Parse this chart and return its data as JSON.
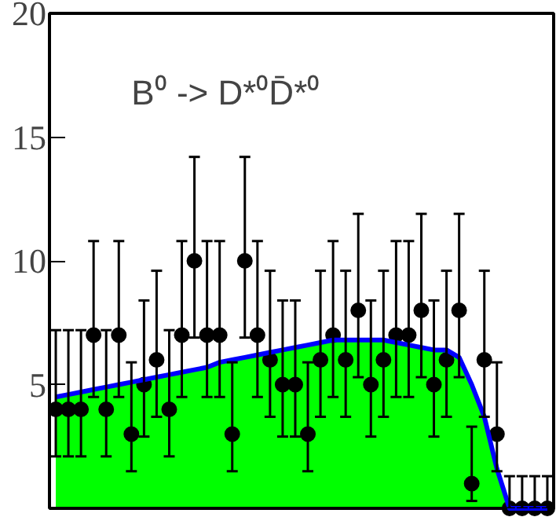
{
  "chart_data": {
    "type": "scatter",
    "categories": [
      null,
      null,
      null,
      null,
      null,
      null,
      null,
      null,
      null,
      null,
      null,
      null,
      null,
      null,
      null,
      null,
      null,
      null,
      null,
      null,
      null,
      null,
      null,
      null,
      null,
      null,
      null,
      null,
      null,
      null,
      null,
      null,
      null,
      null,
      null,
      null,
      null,
      null,
      null,
      null
    ],
    "ylim": [
      0,
      20
    ],
    "yticks": [
      5,
      10,
      15,
      20
    ],
    "tick_labels": "y",
    "annotations": [
      "B⁰ -> D*⁰D̄*⁰"
    ],
    "series": [
      {
        "type": "area",
        "color": "#00ff00",
        "values": [
          4.5,
          4.6,
          4.7,
          4.8,
          4.9,
          5.0,
          5.1,
          5.2,
          5.3,
          5.4,
          5.5,
          5.6,
          5.7,
          5.9,
          6.0,
          6.1,
          6.2,
          6.3,
          6.4,
          6.5,
          6.6,
          6.7,
          6.8,
          6.8,
          6.8,
          6.8,
          6.8,
          6.7,
          6.6,
          6.5,
          6.4,
          6.4,
          6.1,
          5.0,
          3.7,
          1.6,
          0,
          null,
          null,
          null
        ]
      },
      {
        "type": "line",
        "color": "#0000ff",
        "values": [
          4.5,
          4.6,
          4.7,
          4.8,
          4.9,
          5.0,
          5.1,
          5.2,
          5.3,
          5.4,
          5.5,
          5.6,
          5.7,
          5.9,
          6.0,
          6.1,
          6.2,
          6.3,
          6.4,
          6.5,
          6.6,
          6.7,
          6.8,
          6.8,
          6.8,
          6.8,
          6.8,
          6.7,
          6.6,
          6.5,
          6.4,
          6.4,
          6.1,
          5.0,
          3.7,
          1.6,
          0,
          0,
          0,
          0
        ]
      },
      {
        "color": "#000000",
        "marker": "circle",
        "values": [
          4,
          4,
          4,
          7,
          4,
          7,
          3,
          5,
          6,
          4,
          7,
          10,
          7,
          7,
          3,
          10,
          7,
          6,
          5,
          5,
          3,
          6,
          7,
          6,
          8,
          5,
          6,
          7,
          7,
          8,
          5,
          6,
          8,
          1,
          6,
          3,
          0,
          0,
          0,
          0
        ],
        "errors": [
          [
            2.1,
            7.2
          ],
          [
            2.1,
            7.2
          ],
          [
            2.1,
            7.2
          ],
          [
            4.5,
            10.8
          ],
          [
            2.1,
            7.2
          ],
          [
            4.5,
            10.8
          ],
          [
            1.5,
            5.9
          ],
          [
            2.9,
            8.4
          ],
          [
            3.7,
            9.6
          ],
          [
            2.1,
            7.2
          ],
          [
            4.5,
            10.8
          ],
          [
            6.9,
            14.2
          ],
          [
            4.5,
            10.8
          ],
          [
            4.5,
            10.8
          ],
          [
            1.5,
            5.9
          ],
          [
            6.9,
            14.2
          ],
          [
            4.5,
            10.8
          ],
          [
            3.7,
            9.6
          ],
          [
            2.9,
            8.4
          ],
          [
            2.9,
            8.4
          ],
          [
            1.5,
            5.9
          ],
          [
            3.7,
            9.6
          ],
          [
            4.5,
            10.8
          ],
          [
            3.7,
            9.6
          ],
          [
            5.3,
            11.9
          ],
          [
            2.9,
            8.4
          ],
          [
            3.7,
            9.6
          ],
          [
            4.5,
            10.8
          ],
          [
            4.5,
            10.8
          ],
          [
            5.3,
            11.9
          ],
          [
            2.9,
            8.4
          ],
          [
            3.7,
            9.6
          ],
          [
            5.3,
            11.9
          ],
          [
            0.3,
            3.3
          ],
          [
            3.7,
            9.6
          ],
          [
            1.5,
            5.9
          ],
          [
            0,
            1.3
          ],
          [
            0,
            1.3
          ],
          [
            0,
            1.3
          ],
          [
            0,
            1.3
          ]
        ]
      }
    ]
  }
}
